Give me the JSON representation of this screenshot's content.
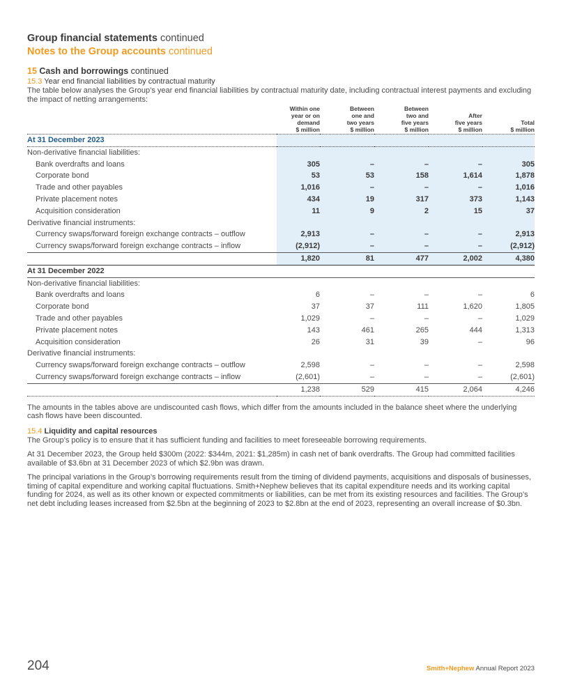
{
  "header": {
    "title": "Group financial statements",
    "title_suffix": "continued",
    "subtitle": "Notes to the Group accounts",
    "subtitle_suffix": "continued"
  },
  "section": {
    "number": "15",
    "title": "Cash and borrowings",
    "suffix": "continued"
  },
  "subsection_153": {
    "number": "15.3",
    "title": "Year end financial liabilities by contractual maturity",
    "intro": "The table below analyses the Group’s year end financial liabilities by contractual maturity date, including contractual interest payments and excluding the impact of netting arrangements:"
  },
  "table": {
    "columns": [
      [
        "Within one",
        "year or on",
        "demand",
        "$ million"
      ],
      [
        "Between",
        "one and",
        "two years",
        "$ million"
      ],
      [
        "Between",
        "two and",
        "five years",
        "$ million"
      ],
      [
        "After",
        "five years",
        "$ million"
      ],
      [
        "Total",
        "$ million"
      ]
    ],
    "year_2023": {
      "label": "At 31 December 2023",
      "rows": [
        {
          "label": "Non-derivative financial liabilities:",
          "values": [
            "",
            "",
            "",
            "",
            ""
          ],
          "type": "group"
        },
        {
          "label": "Bank overdrafts and loans",
          "values": [
            "305",
            "–",
            "–",
            "–",
            "305"
          ],
          "type": "item"
        },
        {
          "label": "Corporate bond",
          "values": [
            "53",
            "53",
            "158",
            "1,614",
            "1,878"
          ],
          "type": "item"
        },
        {
          "label": "Trade and other payables",
          "values": [
            "1,016",
            "–",
            "–",
            "–",
            "1,016"
          ],
          "type": "item"
        },
        {
          "label": "Private placement notes",
          "values": [
            "434",
            "19",
            "317",
            "373",
            "1,143"
          ],
          "type": "item"
        },
        {
          "label": "Acquisition consideration",
          "values": [
            "11",
            "9",
            "2",
            "15",
            "37"
          ],
          "type": "item"
        },
        {
          "label": "Derivative financial instruments:",
          "values": [
            "",
            "",
            "",
            "",
            ""
          ],
          "type": "group"
        },
        {
          "label": "Currency swaps/forward foreign exchange contracts – outflow",
          "values": [
            "2,913",
            "–",
            "–",
            "–",
            "2,913"
          ],
          "type": "item"
        },
        {
          "label": "Currency swaps/forward foreign exchange contracts – inflow",
          "values": [
            "(2,912)",
            "–",
            "–",
            "–",
            "(2,912)"
          ],
          "type": "item-ul"
        }
      ],
      "total": [
        "1,820",
        "81",
        "477",
        "2,002",
        "4,380"
      ]
    },
    "year_2022": {
      "label": "At 31 December 2022",
      "rows": [
        {
          "label": "Non-derivative financial liabilities:",
          "values": [
            "",
            "",
            "",
            "",
            ""
          ],
          "type": "group"
        },
        {
          "label": "Bank overdrafts and loans",
          "values": [
            "6",
            "–",
            "–",
            "–",
            "6"
          ],
          "type": "item"
        },
        {
          "label": "Corporate bond",
          "values": [
            "37",
            "37",
            "111",
            "1,620",
            "1,805"
          ],
          "type": "item"
        },
        {
          "label": "Trade and other payables",
          "values": [
            "1,029",
            "–",
            "–",
            "–",
            "1,029"
          ],
          "type": "item"
        },
        {
          "label": "Private placement notes",
          "values": [
            "143",
            "461",
            "265",
            "444",
            "1,313"
          ],
          "type": "item"
        },
        {
          "label": "Acquisition consideration",
          "values": [
            "26",
            "31",
            "39",
            "–",
            "96"
          ],
          "type": "item"
        },
        {
          "label": "Derivative financial instruments:",
          "values": [
            "",
            "",
            "",
            "",
            ""
          ],
          "type": "group"
        },
        {
          "label": "Currency swaps/forward foreign exchange contracts – outflow",
          "values": [
            "2,598",
            "–",
            "–",
            "–",
            "2,598"
          ],
          "type": "item"
        },
        {
          "label": "Currency swaps/forward foreign exchange contracts – inflow",
          "values": [
            "(2,601)",
            "–",
            "–",
            "–",
            "(2,601)"
          ],
          "type": "item-ul"
        }
      ],
      "total": [
        "1,238",
        "529",
        "415",
        "2,064",
        "4,246"
      ]
    }
  },
  "note_after_table": "The amounts in the tables above are undiscounted cash flows, which differ from the amounts included in the balance sheet where the underlying cash flows have been discounted.",
  "subsection_154": {
    "number": "15.4",
    "title": "Liquidity and capital resources",
    "paragraphs": [
      "The Group’s policy is to ensure that it has sufficient funding and facilities to meet foreseeable borrowing requirements.",
      "At 31 December 2023, the Group held $300m (2022: $344m, 2021: $1,285m) in cash net of bank overdrafts. The Group had committed facilities available of $3.6bn at 31 December 2023 of which $2.9bn was drawn.",
      "The principal variations in the Group’s borrowing requirements result from the timing of dividend payments, acquisitions and disposals of businesses, timing of capital expenditure and working capital fluctuations. Smith+Nephew believes that its capital expenditure needs and its working capital funding for 2024, as well as its other known or expected commitments or liabilities, can be met from its existing resources and facilities. The Group’s net debt including leases increased from $2.5bn at the beginning of 2023 to $2.8bn at the end of 2023, representing an overall increase of $0.3bn."
    ]
  },
  "footer": {
    "page_number": "204",
    "brand": "Smith+Nephew",
    "report": "Annual Report 2023"
  }
}
